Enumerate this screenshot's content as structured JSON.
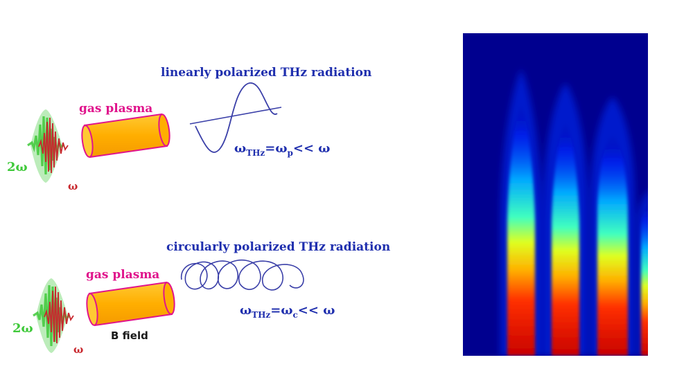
{
  "top_panel": {
    "title": "linearly polarized THz radiation",
    "plasma_label": "gas plasma",
    "pulse_2w_label": "2ω",
    "pulse_w_label": "ω",
    "relation": {
      "lhs": "ω",
      "lhs_sub": "THz",
      "eq": "=ω",
      "rhs_sub": "p",
      "tail": "<< ω"
    }
  },
  "bottom_panel": {
    "title": "circularly polarized THz radiation",
    "plasma_label": "gas plasma",
    "field_label": "B field",
    "pulse_2w_label": "2ω",
    "pulse_w_label": "ω",
    "relation": {
      "lhs": "ω",
      "lhs_sub": "THz",
      "eq": "=ω",
      "rhs_sub": "c",
      "tail": "<< ω"
    }
  },
  "colors": {
    "text_blue": "#1f2fae",
    "text_magenta": "#e0148c",
    "pulse_green": "#3fc93a",
    "pulse_red": "#c8282e",
    "plasma_fill": "#ffb400",
    "plasma_edge": "#e0148c",
    "heatmap_bg": "#00008f"
  },
  "heatmap": {
    "type": "heatmap",
    "colormap": "jet",
    "bands": 4,
    "background": "dark blue"
  }
}
